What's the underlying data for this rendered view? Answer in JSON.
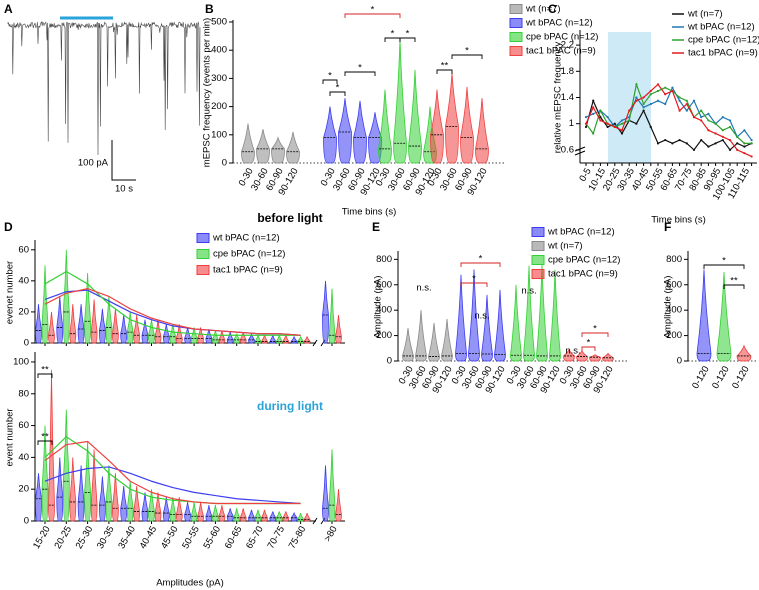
{
  "chart_data": [
    {
      "type": "trace",
      "panel": "A",
      "scale_labels": [
        "100 pA",
        "10 s"
      ]
    },
    {
      "type": "violin",
      "panel": "B",
      "ylabel": "mEPSC frequency (events per min)",
      "xlabel": "Time bins (s)",
      "categories": [
        "0-30",
        "30-60",
        "60-90",
        "90-120"
      ],
      "ylim": [
        0,
        500
      ],
      "yticks": [
        0,
        100,
        200,
        300,
        400,
        500
      ],
      "series": [
        {
          "name": "wt (n=7)",
          "color": "#8a8a8a",
          "values": [
            40,
            50,
            50,
            40
          ],
          "max": [
            140,
            120,
            90,
            110
          ]
        },
        {
          "name": "wt bPAC (n=12)",
          "color": "#3d3df2",
          "values": [
            90,
            110,
            90,
            90
          ],
          "max": [
            200,
            230,
            220,
            180
          ]
        },
        {
          "name": "cpe bPAC (n=12)",
          "color": "#35d035",
          "values": [
            50,
            70,
            60,
            40
          ],
          "max": [
            260,
            440,
            330,
            200
          ]
        },
        {
          "name": "tac1 bPAC (n=9)",
          "color": "#f04040",
          "values": [
            100,
            130,
            90,
            50
          ],
          "max": [
            260,
            320,
            270,
            230
          ]
        }
      ],
      "annotations": [
        "*",
        "*",
        "*",
        "*",
        "*",
        "**",
        "*"
      ]
    },
    {
      "type": "line",
      "panel": "C",
      "ylabel": "relative mEPSC frequency",
      "xlabel": "Time bins (s)",
      "categories": [
        "0-5",
        null,
        "10-15",
        null,
        "20-25",
        null,
        "30-35",
        null,
        "40-45",
        null,
        "50-55",
        null,
        "60-65",
        null,
        "70-75",
        null,
        "80-85",
        null,
        "90-95",
        null,
        "100-105",
        null,
        "110-115",
        null
      ],
      "ylim": [
        0.4,
        2.4
      ],
      "yticks": [
        0.6,
        1,
        1.4,
        1.8,
        2.2
      ],
      "series": [
        {
          "name": "wt (n=7)",
          "color": "#111111",
          "values": [
            0.95,
            1.35,
            1.1,
            0.95,
            1.0,
            0.85,
            1.05,
            1.0,
            1.2,
            0.95,
            0.7,
            0.75,
            0.7,
            0.75,
            0.7,
            0.6,
            0.75,
            0.65,
            0.7,
            0.75,
            0.6,
            0.7,
            0.65,
            0.7
          ]
        },
        {
          "name": "wt bPAC (n=12)",
          "color": "#1f78b4",
          "values": [
            1.1,
            1.15,
            1.2,
            1.1,
            0.95,
            1.05,
            1.1,
            1.4,
            1.25,
            1.3,
            1.35,
            1.3,
            1.55,
            1.35,
            1.2,
            1.35,
            1.1,
            1.15,
            1.0,
            1.1,
            1.05,
            0.8,
            0.9,
            0.75
          ]
        },
        {
          "name": "cpe bPAC (n=12)",
          "color": "#2ca02c",
          "values": [
            1.0,
            0.85,
            1.2,
            1.0,
            0.95,
            1.0,
            1.05,
            1.6,
            1.3,
            1.45,
            1.5,
            1.55,
            1.5,
            1.4,
            1.35,
            1.1,
            1.2,
            1.05,
            1.0,
            0.9,
            0.95,
            0.8,
            0.7,
            0.7
          ]
        },
        {
          "name": "tac1 bPAC (n=9)",
          "color": "#e31a1c",
          "values": [
            1.0,
            1.25,
            1.05,
            1.0,
            0.95,
            0.9,
            1.2,
            1.35,
            1.4,
            1.5,
            1.6,
            1.45,
            1.5,
            1.2,
            1.3,
            1.1,
            1.05,
            0.9,
            0.85,
            0.8,
            0.75,
            0.6,
            0.55,
            0.5
          ]
        }
      ]
    },
    {
      "type": "violin_panels",
      "panel": "D",
      "xlabel": "Amplitudes (pA)",
      "categories": [
        "15-20",
        "20-25",
        "25-30",
        "30-35",
        "35-40",
        "40-45",
        "45-50",
        "50-55",
        "55-60",
        "60-65",
        "65-70",
        "70-75",
        "75-80",
        ">80"
      ],
      "legend": [
        {
          "name": "wt bPAC (n=12)",
          "color": "#3d3df2"
        },
        {
          "name": "cpe bPAC (n=12)",
          "color": "#35d035"
        },
        {
          "name": "tac1 bPAC (n=9)",
          "color": "#f04040"
        }
      ],
      "subplots": [
        {
          "title": "before light",
          "ylabel": "evenet number",
          "ylim": [
            0,
            65
          ],
          "yticks": [
            0,
            20,
            40,
            60
          ],
          "annotations": [
            "*"
          ],
          "series": [
            {
              "values": [
                8,
                10,
                9,
                8,
                6,
                5,
                4,
                3,
                3,
                2,
                2,
                1,
                1,
                18
              ],
              "max": [
                25,
                30,
                25,
                22,
                18,
                15,
                12,
                10,
                9,
                7,
                6,
                5,
                4,
                40
              ],
              "fit": [
                28,
                33,
                34,
                27,
                20,
                15,
                11,
                9,
                8,
                7,
                6,
                6,
                5,
                null
              ]
            },
            {
              "values": [
                12,
                20,
                14,
                10,
                7,
                5,
                4,
                3,
                2,
                2,
                1,
                1,
                1,
                5
              ],
              "max": [
                50,
                60,
                45,
                30,
                20,
                15,
                12,
                10,
                8,
                6,
                5,
                5,
                4,
                35
              ],
              "fit": [
                38,
                46,
                38,
                25,
                15,
                10,
                7,
                6,
                5,
                5,
                5,
                5,
                5,
                null
              ]
            },
            {
              "values": [
                5,
                6,
                7,
                6,
                5,
                4,
                3,
                3,
                2,
                2,
                1,
                1,
                1,
                4
              ],
              "max": [
                20,
                25,
                28,
                22,
                18,
                15,
                12,
                10,
                8,
                7,
                5,
                5,
                4,
                18
              ],
              "fit": [
                25,
                32,
                35,
                30,
                22,
                16,
                12,
                9,
                8,
                7,
                6,
                6,
                5,
                null
              ]
            }
          ]
        },
        {
          "title": "during light",
          "ylabel": "event number",
          "ylim": [
            0,
            105
          ],
          "yticks": [
            0,
            20,
            40,
            60,
            80,
            100
          ],
          "annotations": [
            "**",
            "**"
          ],
          "series": [
            {
              "values": [
                14,
                15,
                12,
                10,
                8,
                6,
                5,
                4,
                3,
                3,
                2,
                2,
                2,
                8
              ],
              "max": [
                30,
                40,
                35,
                28,
                22,
                18,
                15,
                12,
                10,
                8,
                7,
                6,
                5,
                35
              ],
              "fit": [
                25,
                30,
                33,
                34,
                30,
                25,
                21,
                18,
                16,
                14,
                13,
                12,
                11,
                null
              ]
            },
            {
              "values": [
                20,
                25,
                18,
                12,
                8,
                6,
                4,
                3,
                3,
                2,
                2,
                2,
                1,
                10
              ],
              "max": [
                60,
                70,
                50,
                35,
                25,
                20,
                15,
                12,
                10,
                8,
                7,
                6,
                5,
                45
              ],
              "fit": [
                40,
                53,
                44,
                30,
                20,
                15,
                13,
                12,
                11,
                11,
                11,
                11,
                11,
                null
              ]
            },
            {
              "values": [
                10,
                12,
                10,
                8,
                6,
                5,
                4,
                3,
                3,
                2,
                2,
                2,
                1,
                4
              ],
              "max": [
                95,
                40,
                45,
                30,
                22,
                18,
                15,
                12,
                10,
                8,
                7,
                6,
                5,
                20
              ],
              "fit": [
                38,
                48,
                50,
                38,
                25,
                18,
                14,
                12,
                11,
                11,
                11,
                11,
                11,
                null
              ]
            }
          ]
        }
      ]
    },
    {
      "type": "violin",
      "panel": "E",
      "ylabel": "Amplitude (pA)",
      "categories": [
        "0-30",
        "30-60",
        "60-90",
        "90-120"
      ],
      "ylim": [
        0,
        850
      ],
      "yticks": [
        0,
        200,
        400,
        600,
        800
      ],
      "series": [
        {
          "name": "wt bPAC (n=12)",
          "color": "#3d3df2",
          "values": [
            60,
            60,
            55,
            50
          ],
          "max": [
            680,
            720,
            520,
            560
          ]
        },
        {
          "name": "wt (n=7)",
          "color": "#8a8a8a",
          "values": [
            40,
            40,
            35,
            40
          ],
          "max": [
            260,
            400,
            300,
            330
          ]
        },
        {
          "name": "cpe bPAC (n=12)",
          "color": "#35d035",
          "values": [
            45,
            45,
            40,
            40
          ],
          "max": [
            600,
            750,
            760,
            720
          ]
        },
        {
          "name": "tac1 bPAC (n=9)",
          "color": "#f04040",
          "values": [
            40,
            35,
            30,
            25
          ],
          "max": [
            90,
            80,
            50,
            60
          ]
        }
      ],
      "annotations": [
        "n.s.",
        "*",
        "*",
        "n.s.",
        "n.s.",
        "*",
        "*",
        "n.s."
      ]
    },
    {
      "type": "violin",
      "panel": "F",
      "ylabel": "Amplitude (pA)",
      "categories": [
        "0-120"
      ],
      "ylim": [
        0,
        850
      ],
      "yticks": [
        0,
        200,
        400,
        600,
        800
      ],
      "series": [
        {
          "color": "#3d3df2",
          "values": [
            60
          ],
          "max": [
            720
          ]
        },
        {
          "color": "#35d035",
          "values": [
            60
          ],
          "max": [
            700
          ]
        },
        {
          "color": "#f04040",
          "values": [
            40
          ],
          "max": [
            120
          ]
        }
      ],
      "annotations": [
        "*",
        "**"
      ]
    }
  ]
}
